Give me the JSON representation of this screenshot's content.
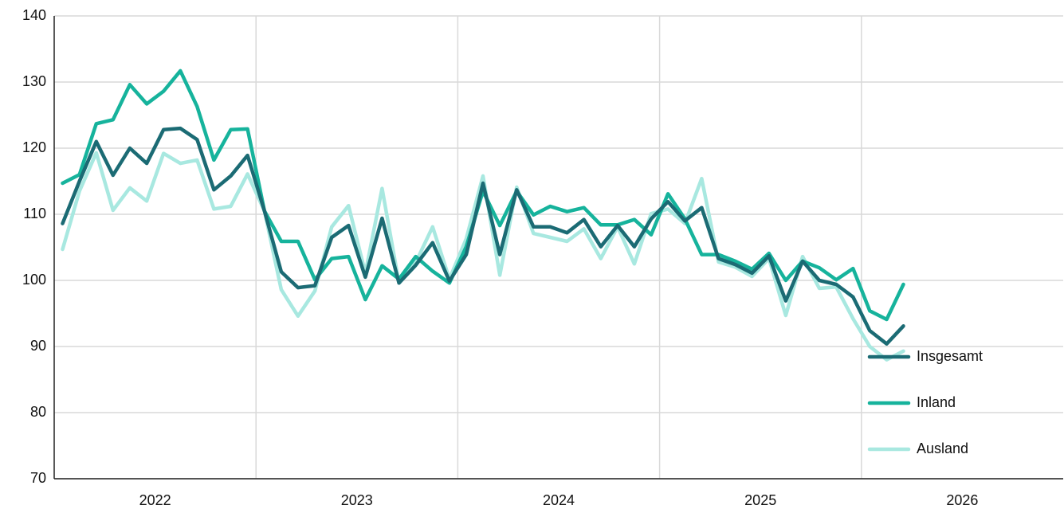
{
  "chart_data": {
    "type": "line",
    "x": [
      0,
      1,
      2,
      3,
      4,
      5,
      6,
      7,
      8,
      9,
      10,
      11,
      12,
      13,
      14,
      15,
      16,
      17,
      18,
      19,
      20,
      21,
      22,
      23,
      24,
      25,
      26,
      27,
      28,
      29,
      30,
      31,
      32,
      33,
      34,
      35,
      36,
      37,
      38,
      39,
      40,
      41,
      42,
      43,
      44,
      45,
      46,
      47,
      48,
      49,
      50
    ],
    "xlim": [
      -0.5,
      59.5
    ],
    "xticks": [
      {
        "value": 5.5,
        "label": "2022"
      },
      {
        "value": 17.5,
        "label": "2023"
      },
      {
        "value": 29.5,
        "label": "2024"
      },
      {
        "value": 41.5,
        "label": "2025"
      },
      {
        "value": 53.5,
        "label": "2026"
      }
    ],
    "xgrid": [
      11.5,
      23.5,
      35.5,
      47.5
    ],
    "ylim": [
      70,
      140
    ],
    "yticks": [
      70,
      80,
      90,
      100,
      110,
      120,
      130,
      140
    ],
    "grid": true,
    "legend": "bottom-right",
    "series": [
      {
        "name": "Insgesamt",
        "color": "#1b6b74",
        "values": [
          108.6,
          115,
          121,
          115.9,
          120,
          117.7,
          122.8,
          123,
          121.3,
          113.7,
          115.8,
          118.9,
          110.5,
          101.3,
          98.9,
          99.2,
          106.5,
          108.3,
          100.5,
          109.4,
          99.6,
          102.3,
          105.7,
          99.9,
          103.9,
          114.7,
          103.9,
          113.7,
          108.1,
          108.1,
          107.2,
          109.2,
          105.1,
          108.3,
          105.1,
          109.3,
          111.9,
          109,
          111,
          103.3,
          102.4,
          101.1,
          103.7,
          96.9,
          102.9,
          100,
          99.4,
          97.5,
          92.4,
          90.4,
          93.1
        ]
      },
      {
        "name": "Inland",
        "color": "#16b39c",
        "values": [
          114.7,
          116,
          123.7,
          124.3,
          129.6,
          126.7,
          128.6,
          131.7,
          126.3,
          118.2,
          122.8,
          122.9,
          110.5,
          105.9,
          105.9,
          100.1,
          103.3,
          103.6,
          97.1,
          102.2,
          100.2,
          103.6,
          101.4,
          99.6,
          105.1,
          113.5,
          108.3,
          113.5,
          109.9,
          111.2,
          110.4,
          111,
          108.4,
          108.4,
          109.2,
          106.9,
          113.1,
          109.3,
          103.9,
          103.9,
          102.9,
          101.7,
          104.1,
          100,
          102.9,
          101.9,
          100.1,
          101.8,
          95.4,
          94.1,
          99.4
        ]
      },
      {
        "name": "Ausland",
        "color": "#a8e8e0",
        "values": [
          104.7,
          113.5,
          119.3,
          110.6,
          114,
          112,
          119.2,
          117.7,
          118.2,
          110.8,
          111.2,
          116.1,
          110.5,
          98.6,
          94.6,
          98.4,
          108.1,
          111.3,
          101.1,
          113.9,
          99.6,
          102.7,
          108.1,
          100.2,
          106.3,
          115.8,
          100.8,
          114.1,
          107.1,
          106.5,
          105.9,
          107.8,
          103.3,
          108.1,
          102.5,
          110.1,
          110.8,
          108.6,
          115.4,
          102.8,
          102,
          100.6,
          103.3,
          94.7,
          103.6,
          98.8,
          99,
          94.2,
          90,
          88,
          89.3
        ]
      }
    ]
  }
}
